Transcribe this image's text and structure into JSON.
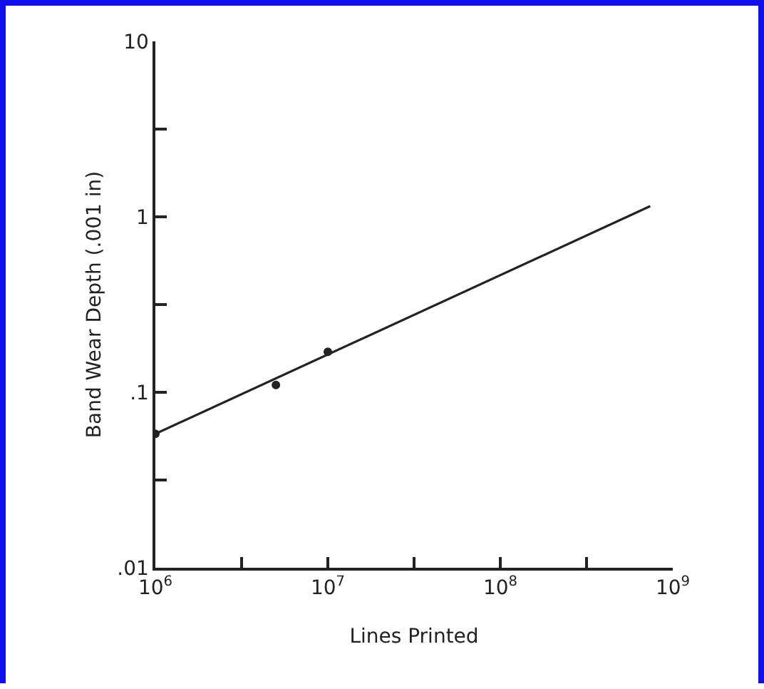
{
  "chart_data": {
    "type": "scatter",
    "xlabel": "Lines Printed",
    "ylabel": "Band Wear Depth (.001 in)",
    "log": "xy",
    "grid": false,
    "xlim": [
      1000000,
      1000000000
    ],
    "xticks": [
      {
        "value": 1000000,
        "label": "10$^{6}$"
      },
      {
        "value": 3162278,
        "label": null
      },
      {
        "value": 10000000,
        "label": "10$^{7}$"
      },
      {
        "value": 31622777,
        "label": null
      },
      {
        "value": 100000000,
        "label": "10$^{8}$"
      },
      {
        "value": 316227766,
        "label": null
      },
      {
        "value": 1000000000,
        "label": "10$^{9}$"
      }
    ],
    "ylim": [
      0.01,
      10
    ],
    "yticks": [
      {
        "value": 0.01,
        "label": ".01"
      },
      {
        "value": 0.0316,
        "label": null
      },
      {
        "value": 0.1,
        "label": ".1"
      },
      {
        "value": 0.316,
        "label": null
      },
      {
        "value": 1,
        "label": "1"
      },
      {
        "value": 3.16,
        "label": null
      },
      {
        "value": 10,
        "label": "10"
      }
    ],
    "series": [
      {
        "type": "scatter",
        "color": "#222222",
        "marker": "circle",
        "x": [
          1000000,
          5000000,
          10000000
        ],
        "values": [
          0.058,
          0.11,
          0.17
        ]
      },
      {
        "type": "line",
        "color": "#222222",
        "marker": "none",
        "line_style": "solid",
        "x": [
          1000000,
          740000000
        ],
        "values": [
          0.058,
          1.15
        ]
      }
    ]
  }
}
